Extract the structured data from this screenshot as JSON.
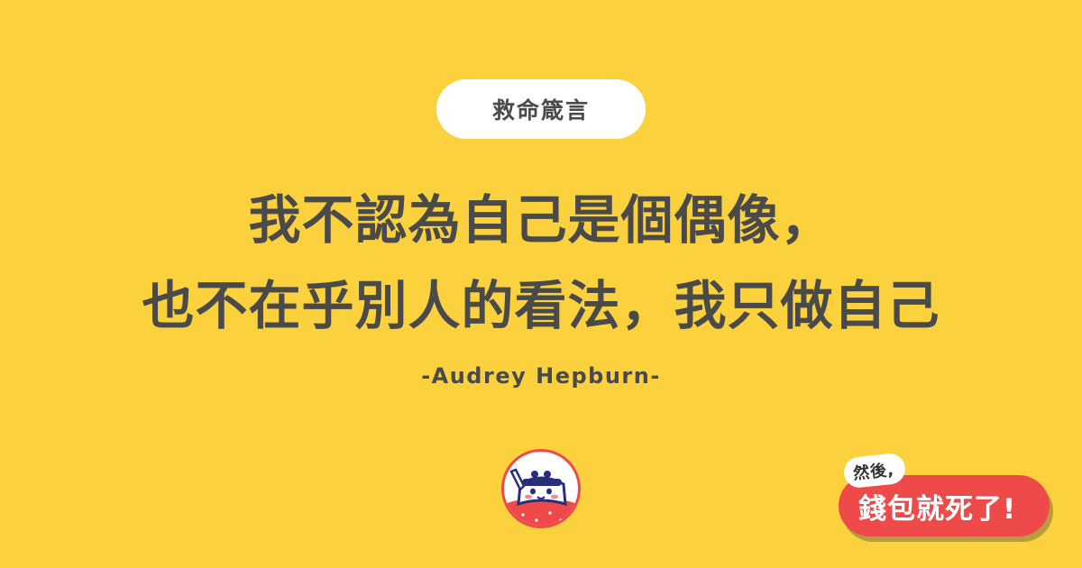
{
  "badge": {
    "label": "救命箴言"
  },
  "quote": {
    "line1": "我不認為自己是個偶像，",
    "line2": "也不在乎別人的看法，我只做自己"
  },
  "author": "-Audrey Hepburn-",
  "brand": {
    "top_text": "然後,",
    "main_text": "錢包就死了!"
  },
  "colors": {
    "background": "#FBD13D",
    "text": "#4A4A4A",
    "accent_red": "#EF4A4A",
    "navy": "#2A2D7A"
  },
  "icons": {
    "mascot": "wallet-mascot-icon"
  }
}
